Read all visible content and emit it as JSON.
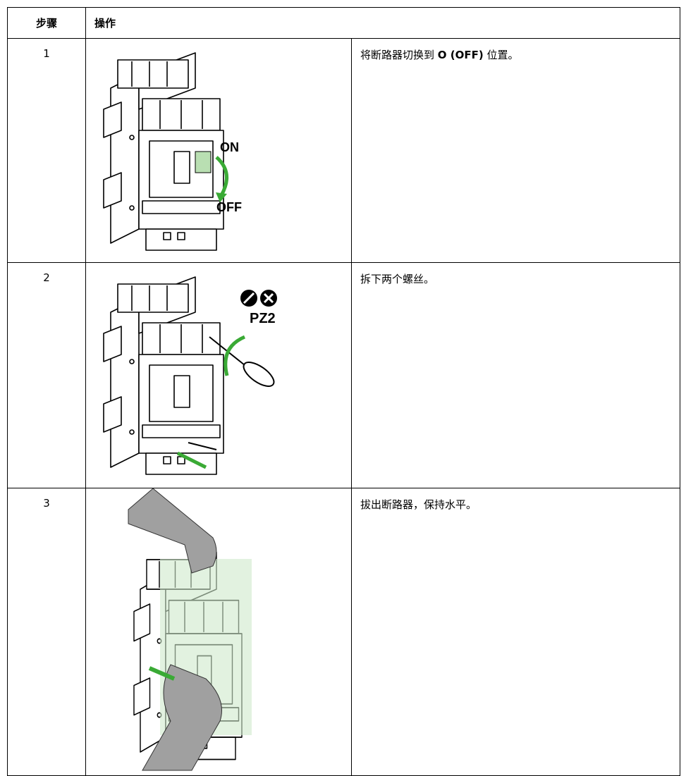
{
  "table": {
    "headers": [
      "步骤",
      "操作"
    ],
    "rows": [
      {
        "step": "1",
        "description": [
          {
            "text": "将断路器切换到 "
          },
          {
            "text": "O (OFF)",
            "bold": true
          },
          {
            "text": " 位置。"
          }
        ],
        "figure_labels": [
          "ON",
          "OFF"
        ]
      },
      {
        "step": "2",
        "description": [
          {
            "text": "拆下两个螺丝。"
          }
        ],
        "figure_labels": [
          "PZ2"
        ]
      },
      {
        "step": "3",
        "description": [
          {
            "text": "拔出断路器，保持水平。"
          }
        ],
        "figure_labels": []
      }
    ]
  }
}
